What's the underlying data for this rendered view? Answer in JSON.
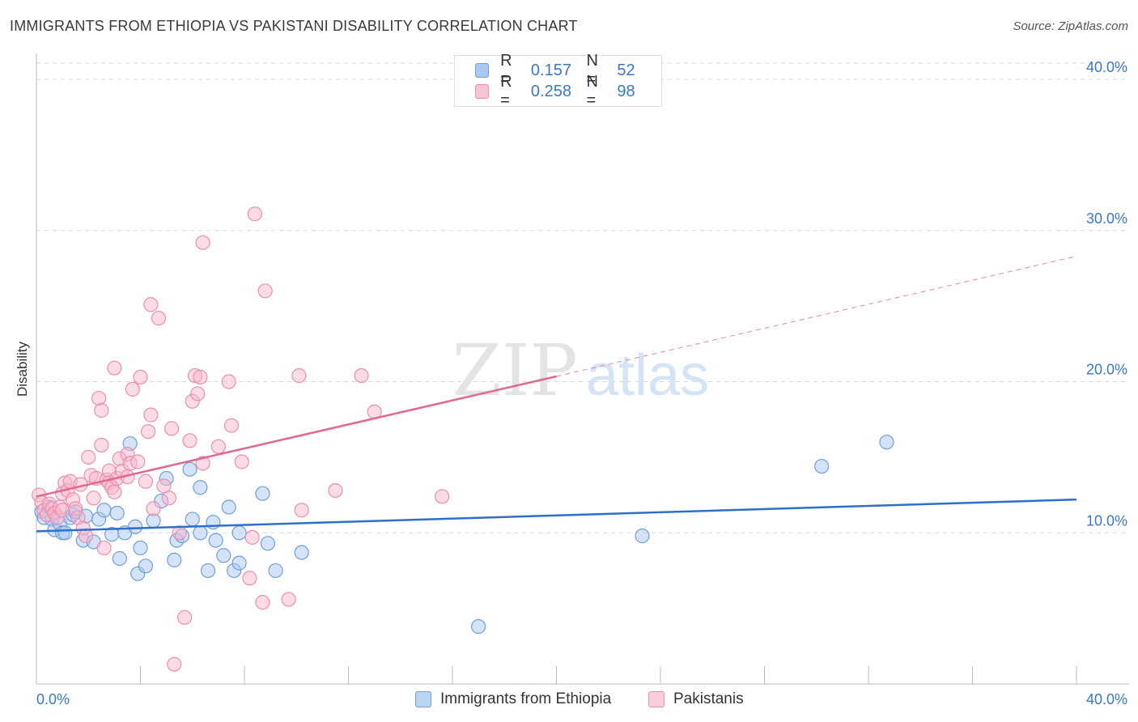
{
  "title": "IMMIGRANTS FROM ETHIOPIA VS PAKISTANI DISABILITY CORRELATION CHART",
  "source": "Source: ZipAtlas.com",
  "watermark": {
    "zip": "ZIP",
    "atlas": "atlas"
  },
  "colors": {
    "blue_fill": "#aac8f0",
    "blue_stroke": "#6f9fdc",
    "blue_line": "#2f6fcc",
    "pink_fill": "#f7b8cc",
    "pink_stroke": "#ec8fae",
    "pink_line": "#e06890",
    "tick_text": "#3a78c9",
    "grid": "#d9d9d9"
  },
  "legend_top": [
    {
      "r_label": "R =",
      "r_value": "0.157",
      "n_label": "N =",
      "n_value": "52"
    },
    {
      "r_label": "R =",
      "r_value": "0.258",
      "n_label": "N =",
      "n_value": "98"
    }
  ],
  "chart_data": {
    "type": "scatter",
    "title": "IMMIGRANTS FROM ETHIOPIA VS PAKISTANI DISABILITY CORRELATION CHART",
    "xlabel": "",
    "ylabel": "Disability",
    "xlim": [
      0,
      40
    ],
    "ylim": [
      0,
      41.5
    ],
    "x_ticks": [
      0,
      40
    ],
    "x_tick_labels": [
      "0.0%",
      "40.0%"
    ],
    "y_ticks": [
      10,
      20,
      30,
      40
    ],
    "y_tick_labels": [
      "10.0%",
      "20.0%",
      "30.0%",
      "40.0%"
    ],
    "grid": true,
    "legend_placement": "bottom-center",
    "series": [
      {
        "name": "Immigrants from Ethiopia",
        "color": "blue",
        "trend": {
          "x0": 0,
          "y0": 10.1,
          "x1": 40,
          "y1": 12.2,
          "dashed_from": null
        },
        "points": [
          [
            0.2,
            11.4
          ],
          [
            0.3,
            11.0
          ],
          [
            0.5,
            11.7
          ],
          [
            0.6,
            10.9
          ],
          [
            0.7,
            10.2
          ],
          [
            0.9,
            10.6
          ],
          [
            1.0,
            10.0
          ],
          [
            1.1,
            10.0
          ],
          [
            1.3,
            11.0
          ],
          [
            1.4,
            11.2
          ],
          [
            1.5,
            11.4
          ],
          [
            1.8,
            9.5
          ],
          [
            1.9,
            11.1
          ],
          [
            2.2,
            9.4
          ],
          [
            2.4,
            10.9
          ],
          [
            2.6,
            11.5
          ],
          [
            2.9,
            9.9
          ],
          [
            3.1,
            11.3
          ],
          [
            3.2,
            8.3
          ],
          [
            3.4,
            10.0
          ],
          [
            3.6,
            15.9
          ],
          [
            3.8,
            10.4
          ],
          [
            3.9,
            7.3
          ],
          [
            4.0,
            9.0
          ],
          [
            4.2,
            7.8
          ],
          [
            4.5,
            10.8
          ],
          [
            4.8,
            12.1
          ],
          [
            5.0,
            13.6
          ],
          [
            5.3,
            8.2
          ],
          [
            5.4,
            9.5
          ],
          [
            5.6,
            9.8
          ],
          [
            5.9,
            14.2
          ],
          [
            6.0,
            10.9
          ],
          [
            6.3,
            13.0
          ],
          [
            6.3,
            10.0
          ],
          [
            6.6,
            7.5
          ],
          [
            6.8,
            10.7
          ],
          [
            6.9,
            9.5
          ],
          [
            7.2,
            8.5
          ],
          [
            7.4,
            11.7
          ],
          [
            7.6,
            7.5
          ],
          [
            7.8,
            10.0
          ],
          [
            7.8,
            8.0
          ],
          [
            8.7,
            12.6
          ],
          [
            8.9,
            9.3
          ],
          [
            9.2,
            7.5
          ],
          [
            10.2,
            8.7
          ],
          [
            17.0,
            3.8
          ],
          [
            23.3,
            9.8
          ],
          [
            30.2,
            14.4
          ],
          [
            32.7,
            16.0
          ]
        ]
      },
      {
        "name": "Pakistanis",
        "color": "pink",
        "trend": {
          "x0": 0,
          "y0": 12.4,
          "x1": 40,
          "y1": 28.3,
          "dashed_from": 20
        },
        "points": [
          [
            0.1,
            12.5
          ],
          [
            0.2,
            12.0
          ],
          [
            0.3,
            11.5
          ],
          [
            0.4,
            11.2
          ],
          [
            0.5,
            11.9
          ],
          [
            0.6,
            11.6
          ],
          [
            0.7,
            11.3
          ],
          [
            0.8,
            11.0
          ],
          [
            0.9,
            11.7
          ],
          [
            1.0,
            12.6
          ],
          [
            1.0,
            11.5
          ],
          [
            1.1,
            13.3
          ],
          [
            1.2,
            12.8
          ],
          [
            1.3,
            13.4
          ],
          [
            1.4,
            12.2
          ],
          [
            1.5,
            11.6
          ],
          [
            1.6,
            11.0
          ],
          [
            1.7,
            13.2
          ],
          [
            1.8,
            10.3
          ],
          [
            1.9,
            9.8
          ],
          [
            2.0,
            15.0
          ],
          [
            2.1,
            13.8
          ],
          [
            2.2,
            12.3
          ],
          [
            2.3,
            13.6
          ],
          [
            2.4,
            18.9
          ],
          [
            2.5,
            15.8
          ],
          [
            2.5,
            18.1
          ],
          [
            2.6,
            9.0
          ],
          [
            2.7,
            13.5
          ],
          [
            2.8,
            14.1
          ],
          [
            2.8,
            13.3
          ],
          [
            2.9,
            13.0
          ],
          [
            3.0,
            12.7
          ],
          [
            3.0,
            20.9
          ],
          [
            3.1,
            13.6
          ],
          [
            3.2,
            14.9
          ],
          [
            3.3,
            14.1
          ],
          [
            3.5,
            13.7
          ],
          [
            3.5,
            15.2
          ],
          [
            3.6,
            14.6
          ],
          [
            3.7,
            19.5
          ],
          [
            3.9,
            14.7
          ],
          [
            4.0,
            20.3
          ],
          [
            4.2,
            13.4
          ],
          [
            4.3,
            16.7
          ],
          [
            4.4,
            17.8
          ],
          [
            4.4,
            25.1
          ],
          [
            4.5,
            11.6
          ],
          [
            4.7,
            24.2
          ],
          [
            4.9,
            13.1
          ],
          [
            5.1,
            12.3
          ],
          [
            5.2,
            16.9
          ],
          [
            5.3,
            1.3
          ],
          [
            5.5,
            10.0
          ],
          [
            5.7,
            4.4
          ],
          [
            5.9,
            16.1
          ],
          [
            6.0,
            18.7
          ],
          [
            6.1,
            20.4
          ],
          [
            6.2,
            19.2
          ],
          [
            6.3,
            20.3
          ],
          [
            6.4,
            29.2
          ],
          [
            6.4,
            14.6
          ],
          [
            7.0,
            15.7
          ],
          [
            7.4,
            20.0
          ],
          [
            7.5,
            17.1
          ],
          [
            7.9,
            14.7
          ],
          [
            8.2,
            7.0
          ],
          [
            8.3,
            9.7
          ],
          [
            8.4,
            31.1
          ],
          [
            8.7,
            5.4
          ],
          [
            8.8,
            26.0
          ],
          [
            9.7,
            5.6
          ],
          [
            10.1,
            20.4
          ],
          [
            10.2,
            11.5
          ],
          [
            11.5,
            12.8
          ],
          [
            12.5,
            20.4
          ],
          [
            13.0,
            18.0
          ],
          [
            15.6,
            12.4
          ]
        ]
      }
    ]
  },
  "legend_bottom": [
    {
      "label": "Immigrants from Ethiopia"
    },
    {
      "label": "Pakistanis"
    }
  ]
}
